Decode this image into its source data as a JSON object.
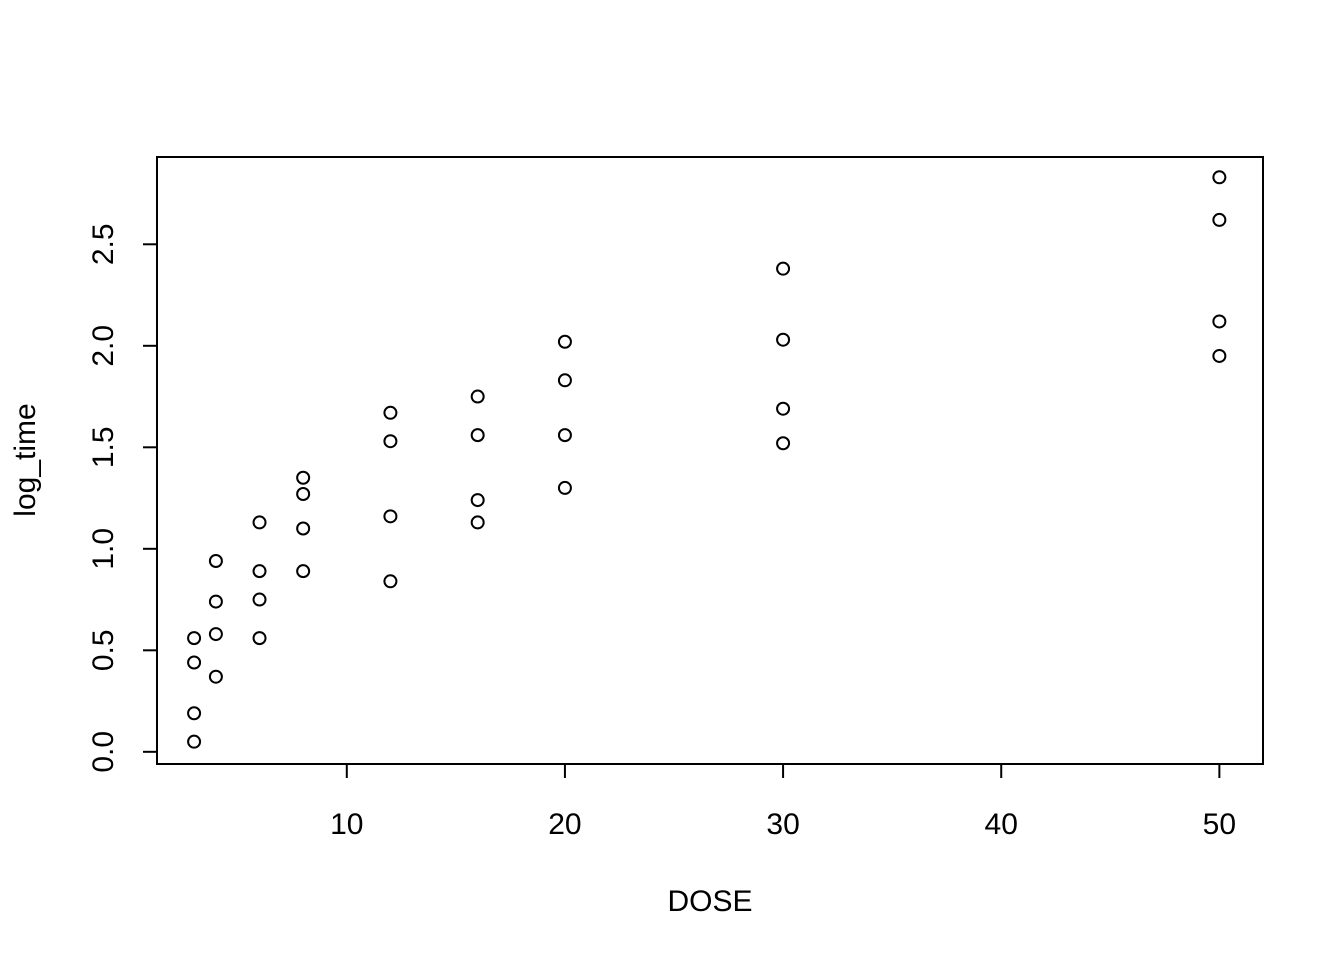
{
  "chart_data": {
    "type": "scatter",
    "title": "",
    "xlabel": "DOSE",
    "ylabel": "log_time",
    "xlim": [
      1.3,
      52
    ],
    "ylim": [
      -0.06,
      2.93
    ],
    "xticks": [
      10,
      20,
      30,
      40,
      50
    ],
    "yticks": [
      0.0,
      0.5,
      1.0,
      1.5,
      2.0,
      2.5
    ],
    "xtick_labels": [
      "10",
      "20",
      "30",
      "40",
      "50"
    ],
    "ytick_labels": [
      "0.0",
      "0.5",
      "1.0",
      "1.5",
      "2.0",
      "2.5"
    ],
    "grid": false,
    "legend": "none",
    "marker": "open-circle",
    "points": [
      {
        "x": 3,
        "y": 0.05
      },
      {
        "x": 3,
        "y": 0.19
      },
      {
        "x": 3,
        "y": 0.44
      },
      {
        "x": 3,
        "y": 0.56
      },
      {
        "x": 4,
        "y": 0.37
      },
      {
        "x": 4,
        "y": 0.58
      },
      {
        "x": 4,
        "y": 0.74
      },
      {
        "x": 4,
        "y": 0.94
      },
      {
        "x": 6,
        "y": 0.56
      },
      {
        "x": 6,
        "y": 0.75
      },
      {
        "x": 6,
        "y": 0.89
      },
      {
        "x": 6,
        "y": 1.13
      },
      {
        "x": 8,
        "y": 0.89
      },
      {
        "x": 8,
        "y": 1.1
      },
      {
        "x": 8,
        "y": 1.27
      },
      {
        "x": 8,
        "y": 1.35
      },
      {
        "x": 12,
        "y": 0.84
      },
      {
        "x": 12,
        "y": 1.16
      },
      {
        "x": 12,
        "y": 1.53
      },
      {
        "x": 12,
        "y": 1.67
      },
      {
        "x": 16,
        "y": 1.13
      },
      {
        "x": 16,
        "y": 1.24
      },
      {
        "x": 16,
        "y": 1.56
      },
      {
        "x": 16,
        "y": 1.75
      },
      {
        "x": 20,
        "y": 1.3
      },
      {
        "x": 20,
        "y": 1.56
      },
      {
        "x": 20,
        "y": 1.83
      },
      {
        "x": 20,
        "y": 2.02
      },
      {
        "x": 30,
        "y": 1.52
      },
      {
        "x": 30,
        "y": 1.69
      },
      {
        "x": 30,
        "y": 2.03
      },
      {
        "x": 30,
        "y": 2.38
      },
      {
        "x": 50,
        "y": 1.95
      },
      {
        "x": 50,
        "y": 2.12
      },
      {
        "x": 50,
        "y": 2.62
      },
      {
        "x": 50,
        "y": 2.83
      }
    ]
  }
}
